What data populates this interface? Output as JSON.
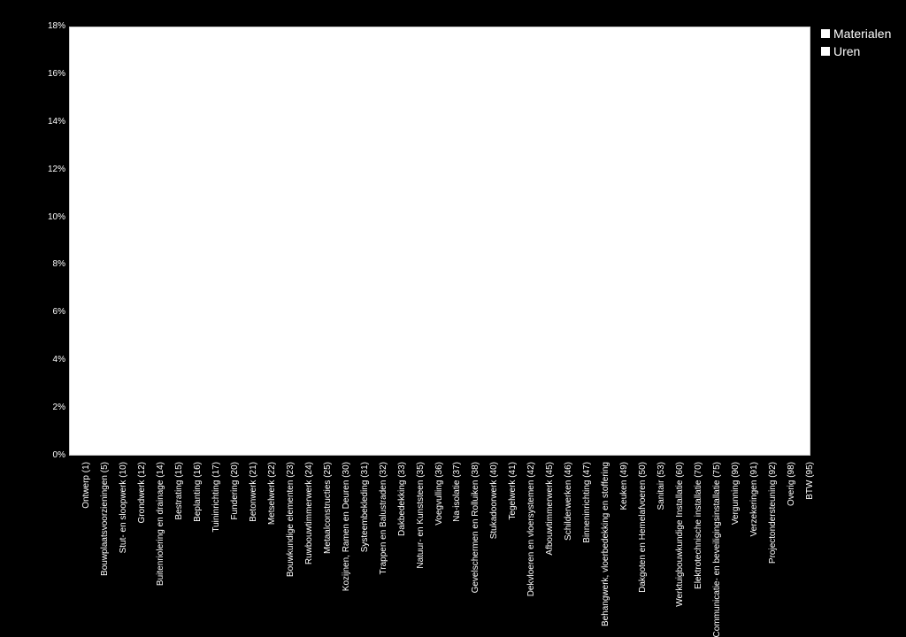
{
  "chart": {
    "type": "bar",
    "background_color": "#000000",
    "plot_background_color": "#ffffff",
    "plot_border_color": "#cccccc",
    "text_color": "#ffffff",
    "tick_fontsize": 10,
    "legend_fontsize": 14,
    "ylim": [
      0,
      18
    ],
    "ytick_step": 2,
    "y_suffix": "%",
    "categories": [
      "Ontwerp (1)",
      "Bouwplaatsvoorzieningen (5)",
      "Stut- en sloopwerk (10)",
      "Grondwerk (12)",
      "Buitenriolering en drainage (14)",
      "Bestrating (15)",
      "Beplanting (16)",
      "Tuininrichting (17)",
      "Fundering (20)",
      "Betonwerk (21)",
      "Metselwerk (22)",
      "Bouwkundige elementen (23)",
      "Ruwbouwtimmerwerk (24)",
      "Metaalconstructies (25)",
      "Kozijnen, Ramen en Deuren (30)",
      "Systeembekleding (31)",
      "Trappen en Balustraden (32)",
      "Dakbedekking (33)",
      "Natuur- en Kunststeen (35)",
      "Voegvulling (36)",
      "Na-isolatie (37)",
      "Gevelschermen en Rolluiken (38)",
      "Stukadoorwerk (40)",
      "Tegelwerk (41)",
      "Dekvloeren en vloersystemen (42)",
      "Afbouwtimmerwerk (45)",
      "Schilderwerken (46)",
      "Binneninrichting (47)",
      "Behangwerk, vloerbedekking en stoffering",
      "Keuken (49)",
      "Dakgoten en Hemelafvoeren (50)",
      "Sanitair (53)",
      "Werktuigbouwkundige Installatie (60)",
      "Elektrotechnische installatie (70)",
      "Communicatie- en beveiligingsinstallatie (75)",
      "Vergunning (90)",
      "Verzekeringen (91)",
      "Projectondersteuning (92)",
      "Overig (98)",
      "BTW (95)"
    ],
    "series": [
      {
        "label": "Materialen",
        "color": "#ffffff",
        "values": [
          0,
          0,
          0,
          0,
          0,
          0,
          0,
          0,
          0,
          0,
          0,
          0,
          0,
          0,
          0,
          0,
          0,
          0,
          0,
          0,
          0,
          0,
          0,
          0,
          0,
          0,
          0,
          0,
          0,
          0,
          0,
          0,
          0,
          0,
          0,
          0,
          0,
          0,
          0,
          0
        ]
      },
      {
        "label": "Uren",
        "color": "#ffffff",
        "values": [
          0,
          0,
          0,
          0,
          0,
          0,
          0,
          0,
          0,
          0,
          0,
          0,
          0,
          0,
          0,
          0,
          0,
          0,
          0,
          0,
          0,
          0,
          0,
          0,
          0,
          0,
          0,
          0,
          0,
          0,
          0,
          0,
          0,
          0,
          0,
          0,
          0,
          0,
          0,
          0
        ]
      }
    ],
    "legend": {
      "items": [
        "Materialen",
        "Uren"
      ],
      "swatch_colors": [
        "#ffffff",
        "#ffffff"
      ]
    }
  }
}
